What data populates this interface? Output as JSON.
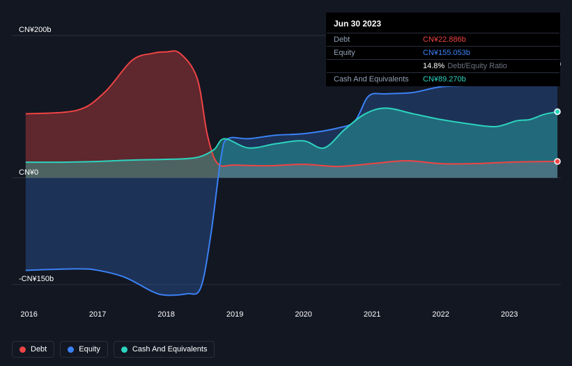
{
  "chart": {
    "type": "area",
    "background_color": "#131722",
    "grid_color": "#2a2f3d",
    "y": {
      "min": -200,
      "max": 250,
      "gridlines": [
        {
          "value": 200,
          "label": "CN¥200b"
        },
        {
          "value": 0,
          "label": "CN¥0"
        },
        {
          "value": -150,
          "label": "-CN¥150b"
        }
      ]
    },
    "x": {
      "min": 2015.75,
      "max": 2023.75,
      "ticks": [
        2016,
        2017,
        2018,
        2019,
        2020,
        2021,
        2022,
        2023
      ],
      "labels": [
        "2016",
        "2017",
        "2018",
        "2019",
        "2020",
        "2021",
        "2022",
        "2023"
      ]
    },
    "series": {
      "debt": {
        "label": "Debt",
        "color": "#ef4444",
        "fill": "rgba(239,68,68,0.35)",
        "points": [
          [
            2015.95,
            90
          ],
          [
            2016.7,
            95
          ],
          [
            2017.1,
            120
          ],
          [
            2017.5,
            165
          ],
          [
            2017.8,
            175
          ],
          [
            2018.0,
            177
          ],
          [
            2018.2,
            175
          ],
          [
            2018.45,
            140
          ],
          [
            2018.6,
            60
          ],
          [
            2018.75,
            20
          ],
          [
            2019.0,
            18
          ],
          [
            2019.5,
            17
          ],
          [
            2020.0,
            19
          ],
          [
            2020.5,
            16
          ],
          [
            2021.0,
            20
          ],
          [
            2021.5,
            24
          ],
          [
            2022.0,
            20
          ],
          [
            2022.5,
            20
          ],
          [
            2023.0,
            22
          ],
          [
            2023.5,
            22.9
          ],
          [
            2023.7,
            23
          ]
        ]
      },
      "equity": {
        "label": "Equity",
        "color": "#3b82f6",
        "fill": "rgba(59,130,246,0.25)",
        "points": [
          [
            2015.95,
            -130
          ],
          [
            2016.7,
            -128
          ],
          [
            2017.0,
            -130
          ],
          [
            2017.4,
            -140
          ],
          [
            2017.8,
            -160
          ],
          [
            2018.0,
            -165
          ],
          [
            2018.3,
            -163
          ],
          [
            2018.5,
            -155
          ],
          [
            2018.65,
            -80
          ],
          [
            2018.8,
            30
          ],
          [
            2018.9,
            55
          ],
          [
            2019.2,
            55
          ],
          [
            2019.6,
            60
          ],
          [
            2020.0,
            62
          ],
          [
            2020.5,
            70
          ],
          [
            2020.75,
            80
          ],
          [
            2020.95,
            115
          ],
          [
            2021.2,
            118
          ],
          [
            2021.6,
            120
          ],
          [
            2022.0,
            128
          ],
          [
            2022.5,
            130
          ],
          [
            2022.9,
            132
          ],
          [
            2023.2,
            145
          ],
          [
            2023.5,
            155
          ],
          [
            2023.7,
            160
          ]
        ]
      },
      "cash": {
        "label": "Cash And Equivalents",
        "color": "#2dd4bf",
        "fill": "rgba(45,212,191,0.35)",
        "points": [
          [
            2015.95,
            22
          ],
          [
            2016.5,
            22
          ],
          [
            2017.0,
            23
          ],
          [
            2017.5,
            25
          ],
          [
            2018.0,
            26
          ],
          [
            2018.3,
            27
          ],
          [
            2018.5,
            30
          ],
          [
            2018.7,
            40
          ],
          [
            2018.85,
            55
          ],
          [
            2019.2,
            42
          ],
          [
            2019.6,
            48
          ],
          [
            2020.0,
            52
          ],
          [
            2020.3,
            42
          ],
          [
            2020.6,
            68
          ],
          [
            2020.9,
            90
          ],
          [
            2021.2,
            98
          ],
          [
            2021.6,
            90
          ],
          [
            2022.0,
            82
          ],
          [
            2022.4,
            76
          ],
          [
            2022.8,
            72
          ],
          [
            2023.1,
            80
          ],
          [
            2023.3,
            82
          ],
          [
            2023.5,
            89
          ],
          [
            2023.7,
            93
          ]
        ]
      }
    },
    "clip_left_year": 2015.95
  },
  "tooltip": {
    "date": "Jun 30 2023",
    "rows": [
      {
        "label": "Debt",
        "value": "CN¥22.886b",
        "color": "#ef4444"
      },
      {
        "label": "Equity",
        "value": "CN¥155.053b",
        "color": "#3b82f6"
      },
      {
        "label": "",
        "value": "14.8%",
        "color": "#ffffff",
        "extra": "Debt/Equity Ratio"
      },
      {
        "label": "Cash And Equivalents",
        "value": "CN¥89.270b",
        "color": "#2dd4bf"
      }
    ]
  },
  "legend": {
    "items": [
      {
        "label": "Debt",
        "color": "#ef4444"
      },
      {
        "label": "Equity",
        "color": "#3b82f6"
      },
      {
        "label": "Cash And Equivalents",
        "color": "#2dd4bf"
      }
    ]
  },
  "markers": {
    "x": 2023.7
  }
}
